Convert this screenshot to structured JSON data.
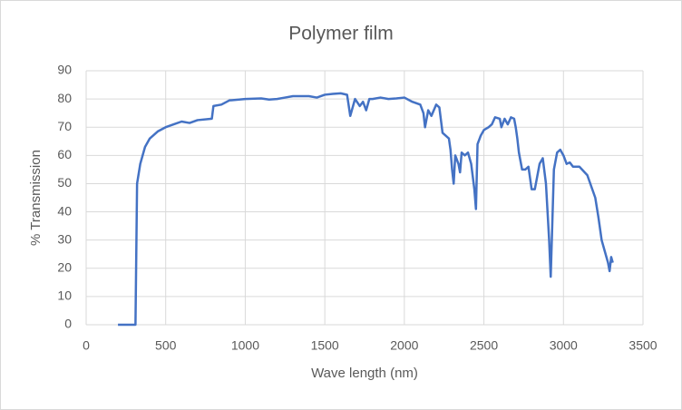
{
  "chart_data": {
    "type": "line",
    "title": "Polymer film",
    "x_label": "Wave length (nm)",
    "y_label": "% Transmission",
    "x": [
      200,
      310,
      320,
      340,
      370,
      400,
      450,
      500,
      550,
      600,
      650,
      700,
      790,
      800,
      850,
      900,
      1000,
      1100,
      1150,
      1200,
      1250,
      1300,
      1400,
      1450,
      1500,
      1550,
      1600,
      1640,
      1660,
      1690,
      1720,
      1740,
      1760,
      1780,
      1800,
      1850,
      1900,
      1950,
      2000,
      2050,
      2100,
      2120,
      2130,
      2150,
      2170,
      2200,
      2220,
      2240,
      2260,
      2280,
      2290,
      2300,
      2310,
      2320,
      2340,
      2350,
      2360,
      2380,
      2400,
      2420,
      2440,
      2450,
      2460,
      2480,
      2500,
      2530,
      2550,
      2570,
      2600,
      2610,
      2630,
      2650,
      2670,
      2690,
      2700,
      2710,
      2720,
      2740,
      2760,
      2780,
      2800,
      2820,
      2850,
      2870,
      2890,
      2910,
      2920,
      2940,
      2960,
      2980,
      3000,
      3020,
      3040,
      3060,
      3100,
      3150,
      3200,
      3220,
      3240,
      3260,
      3280,
      3290,
      3300,
      3310
    ],
    "values": [
      0,
      0,
      50,
      57,
      63,
      66,
      68.5,
      70,
      71,
      72,
      71.5,
      72.5,
      73,
      77.5,
      78,
      79.5,
      80,
      80.2,
      79.8,
      80,
      80.5,
      81,
      81,
      80.5,
      81.5,
      81.8,
      82,
      81.5,
      74,
      80,
      77.5,
      79,
      76,
      80,
      80,
      80.5,
      80,
      80.2,
      80.5,
      79,
      78,
      75,
      70,
      76,
      74,
      78,
      77,
      68,
      67,
      66,
      62,
      55,
      50,
      60,
      57,
      54,
      61,
      60,
      61,
      57,
      48,
      41,
      64,
      67,
      69,
      70,
      71,
      73.5,
      73,
      70,
      73,
      71,
      73.5,
      73,
      70,
      66,
      61,
      55,
      55,
      56,
      48,
      48,
      57,
      59,
      50,
      30,
      17,
      55,
      61,
      62,
      60,
      57,
      57.5,
      56,
      56,
      53,
      45,
      38,
      30,
      26,
      22,
      19,
      24,
      22
    ],
    "color": "#4472c4",
    "xlim": [
      0,
      3500
    ],
    "xticks": [
      0,
      500,
      1000,
      1500,
      2000,
      2500,
      3000,
      3500
    ],
    "ylim": [
      0,
      90
    ],
    "yticks": [
      0,
      10,
      20,
      30,
      40,
      50,
      60,
      70,
      80,
      90
    ],
    "grid": true
  }
}
